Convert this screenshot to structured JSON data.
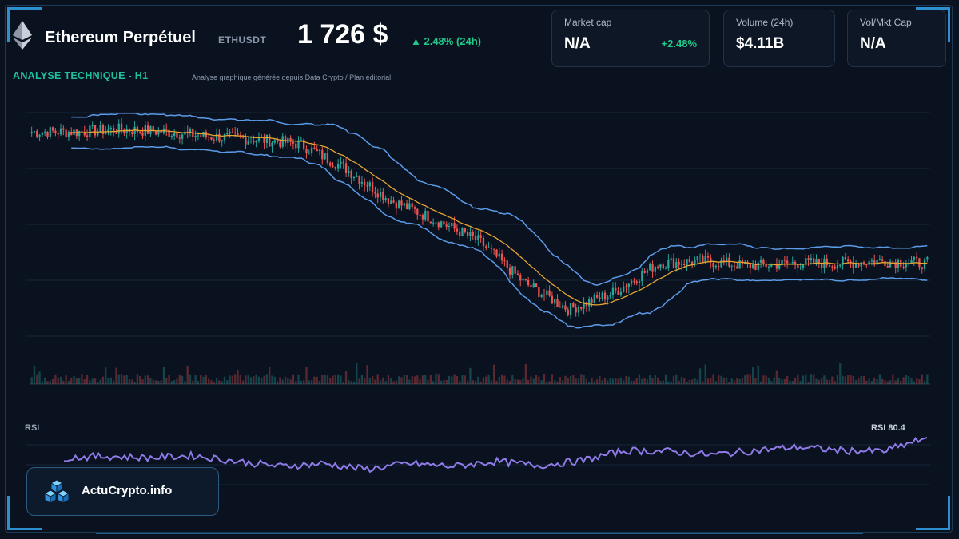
{
  "header": {
    "title": "Ethereum Perpétuel",
    "symbol": "ETHUSDT",
    "price": "1 726 $",
    "change": "▲ 2.48% (24h)"
  },
  "stats": [
    {
      "label": "Market cap",
      "value": "N/A",
      "change": "+2.48%"
    },
    {
      "label": "Volume (24h)",
      "value": "$4.11B",
      "change": ""
    },
    {
      "label": "Vol/Mkt Cap",
      "value": "N/A",
      "change": ""
    }
  ],
  "section": {
    "heading": "ANALYSE TECHNIQUE - H1",
    "note": "Analyse graphique générée depuis Data Crypto / Plan éditorial"
  },
  "rsi": {
    "label": "RSI",
    "value_label": "RSI 80.4"
  },
  "brand": {
    "name": "ActuCrypto.info"
  },
  "colors": {
    "up": "#26a69a",
    "down": "#ef5350",
    "bollinger": "#5b9be8",
    "ma": "#e5a530",
    "rsi": "#8f7be8",
    "accent": "#1fc0a0"
  },
  "icons": {
    "logo": "ethereum-icon",
    "brand": "cubes-icon"
  },
  "chart_data": [
    {
      "type": "line",
      "description_series": [
        "price (candlestick)",
        "bollinger upper",
        "bollinger lower",
        "moving average",
        "volume"
      ],
      "x": [
        0,
        5,
        10,
        15,
        20,
        25,
        30,
        35,
        40,
        45,
        50,
        55,
        60,
        65,
        70,
        75,
        80,
        85,
        90,
        95,
        100
      ],
      "series": [
        {
          "values": [
            100,
            100,
            101,
            100,
            98,
            97,
            95,
            85,
            72,
            64,
            55,
            38,
            27,
            34,
            46,
            47,
            45,
            46,
            46,
            47,
            46
          ]
        }
      ]
    },
    {
      "type": "line",
      "x": [
        0,
        5,
        10,
        15,
        20,
        25,
        30,
        35,
        40,
        45,
        50,
        55,
        60,
        65,
        70,
        75,
        80,
        85,
        90,
        95,
        100
      ],
      "series": [
        {
          "values": [
            52,
            54,
            52,
            55,
            47,
            40,
            44,
            36,
            44,
            40,
            47,
            41,
            48,
            62,
            61,
            56,
            62,
            67,
            62,
            61,
            80
          ]
        }
      ],
      "ylim": [
        0,
        100
      ]
    }
  ]
}
